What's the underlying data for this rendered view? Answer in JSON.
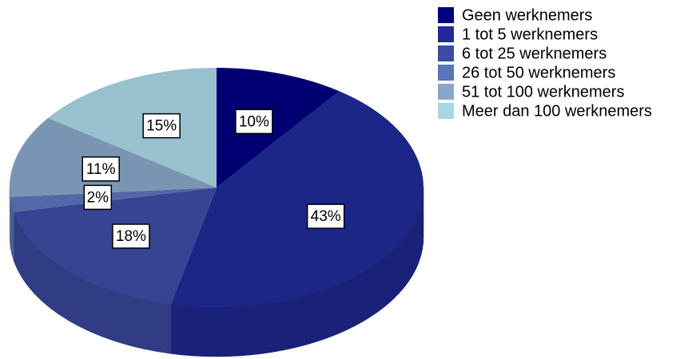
{
  "chart_data": {
    "type": "pie",
    "categories": [
      "Geen werknemers",
      "1 tot 5 werknemers",
      "6 tot 25 werknemers",
      "26 tot 50 werknemers",
      "51 tot 100 werknemers",
      "Meer dan 100 werknemers"
    ],
    "values": [
      10,
      43,
      18,
      2,
      11,
      15
    ],
    "value_labels": [
      "10%",
      "43%",
      "18%",
      "2%",
      "11%",
      "15%"
    ],
    "colors": [
      "#000080",
      "#1f2a96",
      "#3c4ba4",
      "#5c74b8",
      "#88a6c8",
      "#a9d6e4"
    ],
    "legend": "top-right"
  }
}
